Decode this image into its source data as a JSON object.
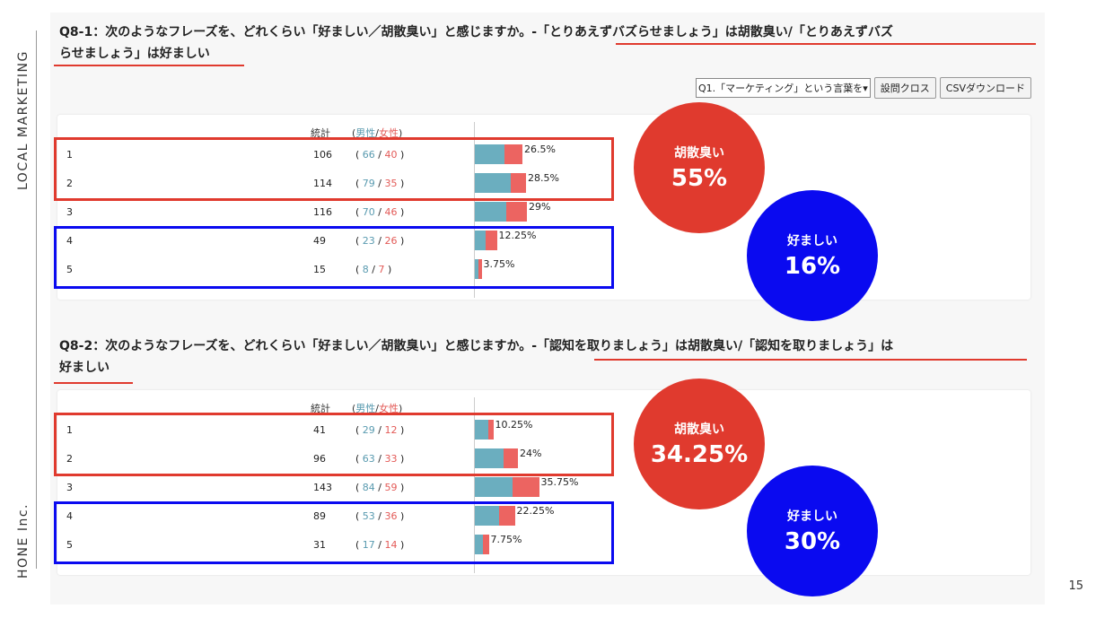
{
  "side": {
    "top": "LOCAL MARKETING",
    "bottom": "HONE Inc."
  },
  "page_number": "15",
  "toolbar": {
    "select_value": "Q1.「マーケティング」という言葉を",
    "btn_cross": "設問クロス",
    "btn_csv": "CSVダウンロード"
  },
  "colors": {
    "male": "#6baebf",
    "female": "#ec6461",
    "red": "#e03a2e",
    "blue": "#0a0af0"
  },
  "header": {
    "stat": "統計",
    "open": "(",
    "male": "男性",
    "sep": "/",
    "female": "女性",
    "close": ")"
  },
  "chart_data": [
    {
      "type": "bar",
      "title_line1": "Q8-1：次のようなフレーズを、どれくらい「好ましい／胡散臭い」と感じますか。-「とりあえずバズらせましょう」は胡散臭い/「とりあえずバズ",
      "title_line2": "らせましょう」は好ましい",
      "categories": [
        "1",
        "2",
        "3",
        "4",
        "5"
      ],
      "totals": [
        106,
        114,
        116,
        49,
        15
      ],
      "series": [
        {
          "name": "男性",
          "values": [
            66,
            79,
            70,
            23,
            8
          ]
        },
        {
          "name": "女性",
          "values": [
            40,
            35,
            46,
            26,
            7
          ]
        }
      ],
      "percent_labels": [
        "26.5%",
        "28.5%",
        "29%",
        "12.25%",
        "3.75%"
      ],
      "callouts": {
        "red_label": "胡散臭い",
        "red_value": "55%",
        "blue_label": "好ましい",
        "blue_value": "16%"
      }
    },
    {
      "type": "bar",
      "title_line1": "Q8-2：次のようなフレーズを、どれくらい「好ましい／胡散臭い」と感じますか。-「認知を取りましょう」は胡散臭い/「認知を取りましょう」は",
      "title_line2": "好ましい",
      "categories": [
        "1",
        "2",
        "3",
        "4",
        "5"
      ],
      "totals": [
        41,
        96,
        143,
        89,
        31
      ],
      "series": [
        {
          "name": "男性",
          "values": [
            29,
            63,
            84,
            53,
            17
          ]
        },
        {
          "name": "女性",
          "values": [
            12,
            33,
            59,
            36,
            14
          ]
        }
      ],
      "percent_labels": [
        "10.25%",
        "24%",
        "35.75%",
        "22.25%",
        "7.75%"
      ],
      "callouts": {
        "red_label": "胡散臭い",
        "red_value": "34.25%",
        "blue_label": "好ましい",
        "blue_value": "30%"
      }
    }
  ]
}
